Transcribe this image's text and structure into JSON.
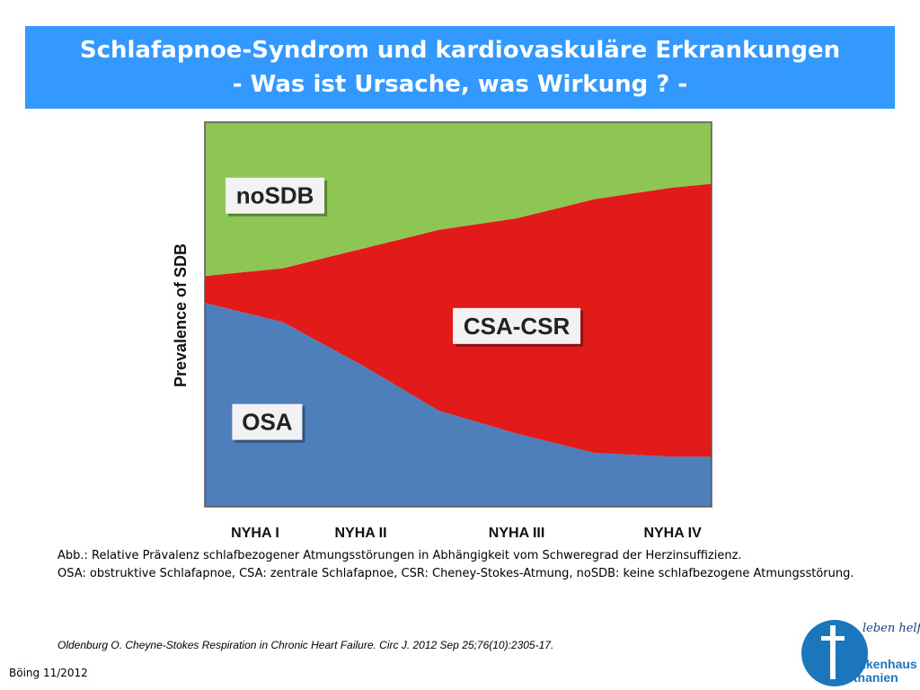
{
  "header": {
    "title_line1": "Schlafapnoe-Syndrom und kardiovaskuläre Erkrankungen",
    "title_line2": "- Was ist Ursache, was Wirkung ? -"
  },
  "chart_data": {
    "type": "area",
    "stacked": true,
    "normalized": true,
    "ylabel": "Prevalence of SDB",
    "xlabel": "",
    "categories": [
      "NYHA I",
      "NYHA II",
      "NYHA III",
      "NYHA IV"
    ],
    "x": [
      0,
      0.5,
      1,
      1.5,
      2,
      2.5,
      3,
      3.25
    ],
    "series": [
      {
        "name": "OSA",
        "color": "#4f7fba",
        "values": [
          0.53,
          0.48,
          0.37,
          0.25,
          0.19,
          0.14,
          0.13,
          0.13
        ]
      },
      {
        "name": "CSA-CSR",
        "color": "#e21a1a",
        "values": [
          0.07,
          0.14,
          0.3,
          0.47,
          0.56,
          0.66,
          0.7,
          0.71
        ]
      },
      {
        "name": "noSDB",
        "color": "#8dc653",
        "values": [
          0.4,
          0.38,
          0.33,
          0.28,
          0.25,
          0.2,
          0.17,
          0.16
        ]
      }
    ],
    "grid": false
  },
  "caption": {
    "line1": "Abb.: Relative Prävalenz schlafbezogener Atmungsstörungen in Abhängigkeit vom Schweregrad der Herzinsuffizienz.",
    "line2": "OSA: obstruktive Schlafapnoe, CSA: zentrale Schlafapnoe, CSR: Cheney-Stokes-Atmung, noSDB: keine schlafbezogene Atmungsstörung."
  },
  "citation": "Oldenburg O. Cheyne-Stokes Respiration in Chronic Heart Failure. Circ J. 2012 Sep 25;76(10):2305-17.",
  "footer": "Böing 11/2012",
  "logo": {
    "tagline": "leben helfen",
    "name_line1": "Krankenhaus",
    "name_line2": "Bethanien"
  }
}
